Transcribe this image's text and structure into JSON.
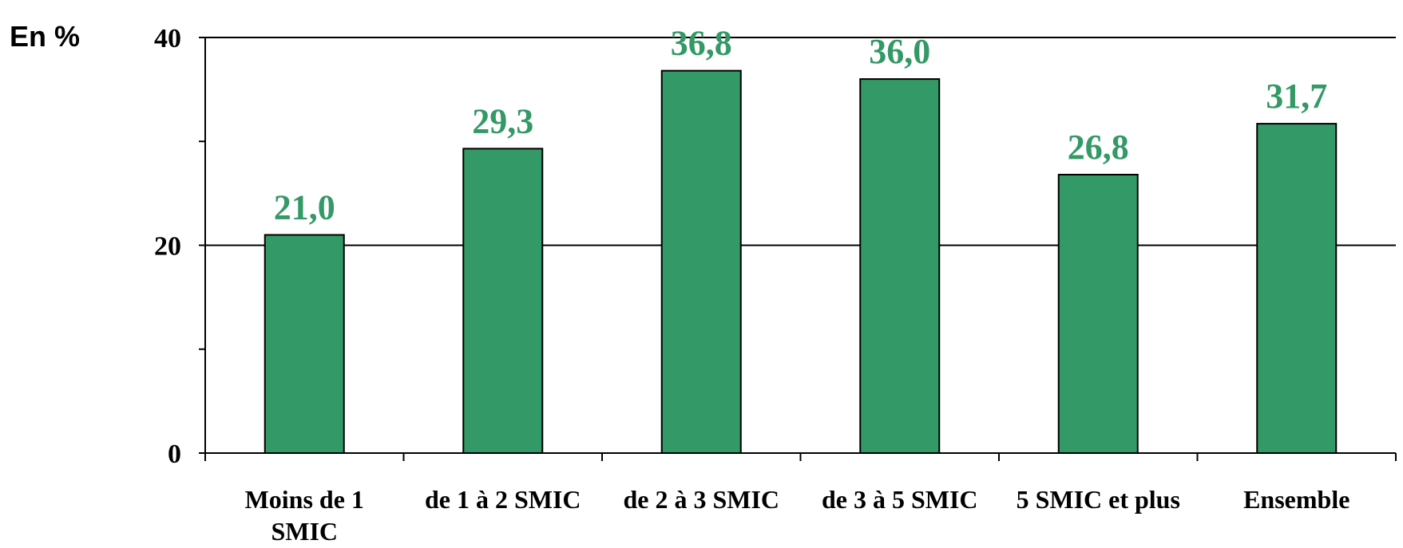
{
  "chart_data": {
    "type": "bar",
    "unit_label": "En %",
    "categories": [
      [
        "Moins de 1",
        "SMIC"
      ],
      [
        "de 1 à 2 SMIC"
      ],
      [
        "de 2 à 3 SMIC"
      ],
      [
        "de 3 à 5 SMIC"
      ],
      [
        "5 SMIC et plus"
      ],
      [
        "Ensemble"
      ]
    ],
    "values": [
      21.0,
      29.3,
      36.8,
      36.0,
      26.8,
      31.7
    ],
    "value_labels": [
      "21,0",
      "29,3",
      "36,8",
      "36,0",
      "26,8",
      "31,7"
    ],
    "ylim": [
      0,
      40
    ],
    "yticks": [
      0,
      20,
      40
    ],
    "ytick_labels": [
      "0",
      "20",
      "40"
    ],
    "grid": true,
    "legend": "none",
    "colors": {
      "bar_fill": "#339966",
      "bar_stroke": "#000000",
      "value_label": "#339966",
      "axis": "#000000"
    }
  }
}
